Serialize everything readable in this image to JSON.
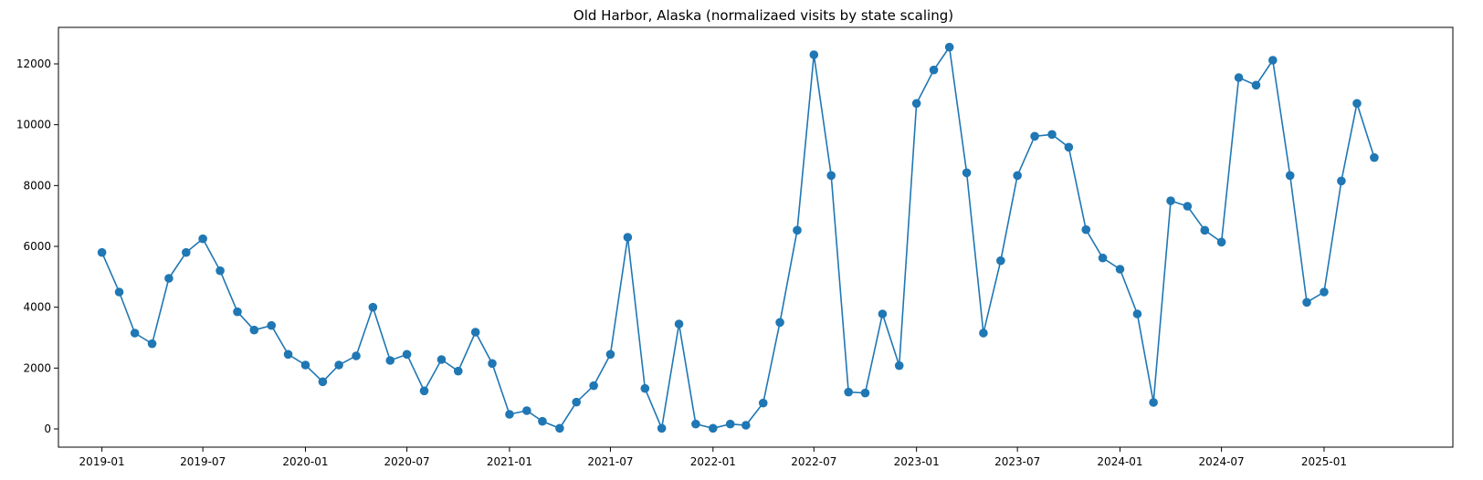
{
  "chart_data": {
    "type": "line",
    "title": "Old Harbor, Alaska (normalizaed visits by state scaling)",
    "xlabel": "",
    "ylabel": "",
    "marker": "circle",
    "grid": false,
    "legend": "none",
    "color": "#1f77b4",
    "xlim": [
      "2018-10-15",
      "2025-08-20"
    ],
    "ylim": [
      -600,
      13200
    ],
    "x_ticks": [
      "2019-01",
      "2019-07",
      "2020-01",
      "2020-07",
      "2021-01",
      "2021-07",
      "2022-01",
      "2022-07",
      "2023-01",
      "2023-07",
      "2024-01",
      "2024-07",
      "2025-01"
    ],
    "y_ticks": [
      0,
      2000,
      4000,
      6000,
      8000,
      10000,
      12000
    ],
    "series": [
      {
        "x": [
          "2019-01",
          "2019-02",
          "2019-03",
          "2019-04",
          "2019-05",
          "2019-06",
          "2019-07",
          "2019-08",
          "2019-09",
          "2019-10",
          "2019-11",
          "2019-12",
          "2020-01",
          "2020-02",
          "2020-03",
          "2020-04",
          "2020-05",
          "2020-06",
          "2020-07",
          "2020-08",
          "2020-09",
          "2020-10",
          "2020-11",
          "2020-12",
          "2021-01",
          "2021-02",
          "2021-03",
          "2021-04",
          "2021-05",
          "2021-06",
          "2021-07",
          "2021-08",
          "2021-09",
          "2021-10",
          "2021-11",
          "2021-12",
          "2022-01",
          "2022-02",
          "2022-03",
          "2022-04",
          "2022-05",
          "2022-06",
          "2022-07",
          "2022-08",
          "2022-09",
          "2022-10",
          "2022-11",
          "2022-12",
          "2023-01",
          "2023-02",
          "2023-03",
          "2023-04",
          "2023-05",
          "2023-06",
          "2023-07",
          "2023-08",
          "2023-09",
          "2023-10",
          "2023-11",
          "2023-12",
          "2024-01",
          "2024-02",
          "2024-03",
          "2024-04",
          "2024-05",
          "2024-06",
          "2024-07",
          "2024-08",
          "2024-09",
          "2024-10",
          "2024-11",
          "2024-12",
          "2025-01",
          "2025-02",
          "2025-03",
          "2025-04"
        ],
        "values": [
          5800,
          4500,
          3150,
          2800,
          4950,
          5800,
          6250,
          5200,
          3850,
          3250,
          3400,
          2450,
          2100,
          1550,
          2100,
          2400,
          4000,
          2250,
          2450,
          1250,
          2280,
          1900,
          3180,
          2150,
          480,
          600,
          250,
          20,
          880,
          1420,
          2450,
          6300,
          1330,
          20,
          3450,
          160,
          20,
          160,
          120,
          850,
          3500,
          6530,
          12300,
          8330,
          1210,
          1180,
          3780,
          2080,
          10700,
          11800,
          12550,
          8420,
          3150,
          5530,
          8330,
          9620,
          9680,
          9260,
          6550,
          5620,
          5250,
          3780,
          870,
          7500,
          7320,
          6530,
          6140,
          11550,
          11300,
          12120,
          8330,
          4160,
          4500,
          8150,
          10700,
          8920
        ]
      }
    ]
  }
}
